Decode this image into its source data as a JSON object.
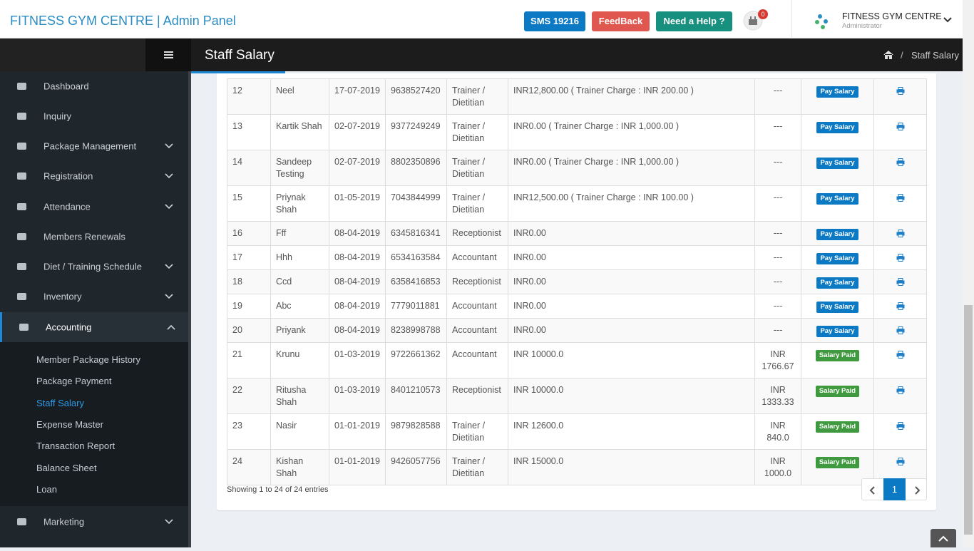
{
  "header": {
    "brand": "FITNESS GYM CENTRE | Admin Panel",
    "sms": "SMS 19216",
    "feedback": "FeedBack",
    "help": "Need a Help ?",
    "notification_count": "0",
    "user_name": "FITNESS GYM CENTRE",
    "user_role": "Administrator"
  },
  "sidebar": {
    "menu": [
      "Dashboard",
      "Inquiry",
      "Package Management",
      "Registration",
      "Attendance",
      "Members Renewals",
      "Diet / Training Schedule",
      "Inventory",
      "Accounting"
    ],
    "submenu": [
      "Member Package History",
      "Package Payment",
      "Staff Salary",
      "Expense Master",
      "Transaction Report",
      "Balance Sheet",
      "Loan"
    ],
    "after": [
      "Marketing"
    ]
  },
  "page": {
    "title": "Staff Salary",
    "breadcrumb": "Staff Salary"
  },
  "table": {
    "rows": [
      {
        "cells": [
          "12",
          "Neel",
          "17-07-2019",
          "9638527420",
          "Trainer / Dietitian",
          "INR12,800.00 ( Trainer Charge : INR 200.00 )",
          "---"
        ],
        "status": "Pay Salary",
        "status_color": "#0b79c4"
      },
      {
        "cells": [
          "13",
          "Kartik Shah",
          "02-07-2019",
          "9377249249",
          "Trainer / Dietitian",
          "INR0.00 ( Trainer Charge : INR 1,000.00 )",
          "---"
        ],
        "status": "Pay Salary",
        "status_color": "#0b79c4"
      },
      {
        "cells": [
          "14",
          "Sandeep Testing",
          "02-07-2019",
          "8802350896",
          "Trainer / Dietitian",
          "INR0.00 ( Trainer Charge : INR 1,000.00 )",
          "---"
        ],
        "status": "Pay Salary",
        "status_color": "#0b79c4"
      },
      {
        "cells": [
          "15",
          "Priynak Shah",
          "01-05-2019",
          "7043844999",
          "Trainer / Dietitian",
          "INR12,500.00 ( Trainer Charge : INR 100.00 )",
          "---"
        ],
        "status": "Pay Salary",
        "status_color": "#0b79c4"
      },
      {
        "cells": [
          "16",
          "Fff",
          "08-04-2019",
          "6345816341",
          "Receptionist",
          "INR0.00",
          "---"
        ],
        "status": "Pay Salary",
        "status_color": "#0b79c4"
      },
      {
        "cells": [
          "17",
          "Hhh",
          "08-04-2019",
          "6534163584",
          "Accountant",
          "INR0.00",
          "---"
        ],
        "status": "Pay Salary",
        "status_color": "#0b79c4"
      },
      {
        "cells": [
          "18",
          "Ccd",
          "08-04-2019",
          "6358416853",
          "Receptionist",
          "INR0.00",
          "---"
        ],
        "status": "Pay Salary",
        "status_color": "#0b79c4"
      },
      {
        "cells": [
          "19",
          "Abc",
          "08-04-2019",
          "7779011881",
          "Accountant",
          "INR0.00",
          "---"
        ],
        "status": "Pay Salary",
        "status_color": "#0b79c4"
      },
      {
        "cells": [
          "20",
          "Priyank",
          "08-04-2019",
          "8238998788",
          "Accountant",
          "INR0.00",
          "---"
        ],
        "status": "Pay Salary",
        "status_color": "#0b79c4"
      },
      {
        "cells": [
          "21",
          "Krunu",
          "01-03-2019",
          "9722661362",
          "Accountant",
          "INR 10000.0",
          "INR 1766.67"
        ],
        "status": "Salary Paid",
        "status_color": "#3f9a3f"
      },
      {
        "cells": [
          "22",
          "Ritusha Shah",
          "01-03-2019",
          "8401210573",
          "Receptionist",
          "INR 10000.0",
          "INR 1333.33"
        ],
        "status": "Salary Paid",
        "status_color": "#3f9a3f"
      },
      {
        "cells": [
          "23",
          "Nasir",
          "01-01-2019",
          "9879828588",
          "Trainer / Dietitian",
          "INR 12600.0",
          "INR 840.0"
        ],
        "status": "Salary Paid",
        "status_color": "#3f9a3f"
      },
      {
        "cells": [
          "24",
          "Kishan Shah",
          "01-01-2019",
          "9426057756",
          "Trainer / Dietitian",
          "INR 15000.0",
          "INR 1000.0"
        ],
        "status": "Salary Paid",
        "status_color": "#3f9a3f"
      }
    ]
  },
  "footer": {
    "info": "Showing 1 to 24 of 24 entries",
    "current_page": "1"
  }
}
